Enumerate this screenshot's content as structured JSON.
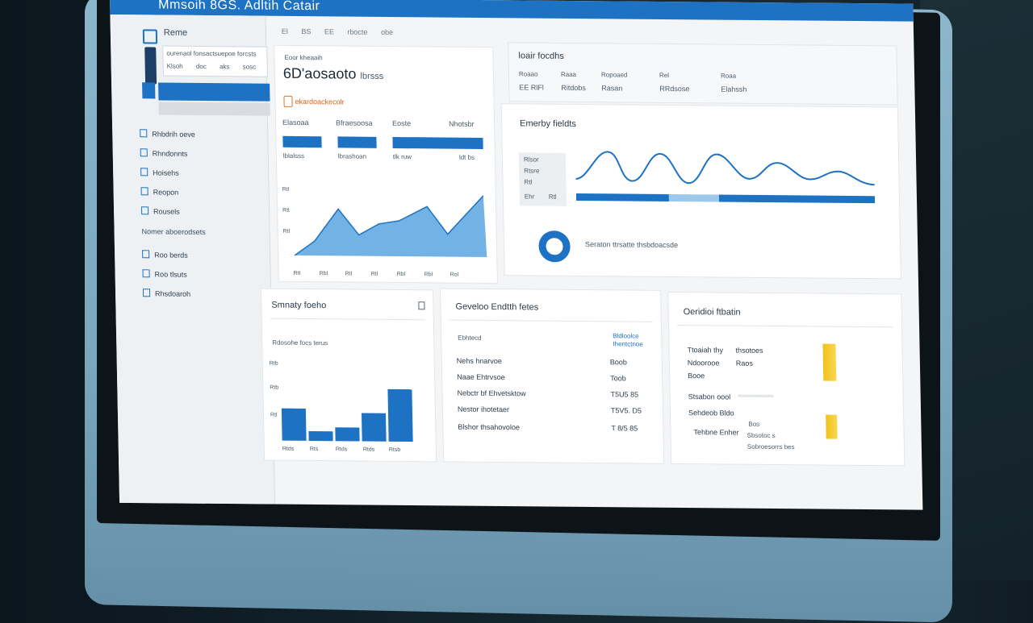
{
  "window": {
    "title": "Mmsoih 8GS. Adltih Catair"
  },
  "sidebar": {
    "home_label": "Reme",
    "card_line1": "ourenaol fonsactsuepoe forcsts",
    "card_line2": "Klsoh doc aks sosc",
    "items": [
      {
        "label": "Rhbdrih oeve"
      },
      {
        "label": "Rhndonnts"
      },
      {
        "label": "Hoisehs"
      },
      {
        "label": "Reopon"
      },
      {
        "label": "Rousels"
      }
    ],
    "section_label": "Nomer aboerodsets",
    "items2": [
      {
        "label": "Roo berds"
      },
      {
        "label": "Roo tlsuts"
      },
      {
        "label": "Rhsdoaroh"
      }
    ]
  },
  "topnav": {
    "items": [
      "El",
      "BS",
      "EE",
      "rbocte",
      "obe"
    ]
  },
  "summary": {
    "small_label": "Eoor kheaaih",
    "big_value": "6D'aosaoto",
    "big_suffix": "lbrsss",
    "alert": "ekardoackecolr",
    "stats": [
      {
        "label": "Elasoaa",
        "sub": "lblalsss"
      },
      {
        "label": "Bfraesoosa",
        "sub": "lbrashoan"
      },
      {
        "label": "Eoste",
        "sub": "tlk ruw"
      },
      {
        "label": "Nhotsbr",
        "sub": "ldt bs"
      }
    ],
    "y_ticks": [
      "Rtl",
      "Rtl",
      "Rtl"
    ],
    "x_ticks": [
      "Rtl",
      "Rbl",
      "Rtl",
      "Rtl",
      "Rbl",
      "Rbl",
      "Rol"
    ]
  },
  "top_right": {
    "title": "loair focdhs",
    "headers": [
      "Roaao",
      "Raaa",
      "Ropoaed",
      "Rel",
      "Roaa"
    ],
    "values": [
      "EE RlFl",
      "Ritdobs",
      "Rasan",
      "RRdsose",
      "Elahssh"
    ]
  },
  "activity": {
    "title": "Emerby fieldts",
    "legend": [
      "Rlsor",
      "Rtsre",
      "Rtl",
      "Ehr",
      "Rtl"
    ],
    "donut_text": "Seraton ttrsatte thsbdoacsde"
  },
  "bottom_left": {
    "title": "Smnaty foeho",
    "subtitle": "Rdosohe focs terus",
    "y_ticks": [
      "Rtb",
      "Rtb",
      "Rtl"
    ],
    "x_ticks": [
      "Rtds",
      "Rts",
      "Rtds",
      "Rtds",
      "Rtsb"
    ],
    "bars_values": [
      40,
      12,
      17,
      35,
      65
    ]
  },
  "bottom_mid": {
    "title": "Geveloo Endtth fetes",
    "col_head": "Ebhtecd",
    "col_head2": "Bldloolce Ihentctnoe",
    "rows": [
      {
        "label": "Nehs hnarvoe",
        "value": "Boob"
      },
      {
        "label": "Naae Ehtrvsoe",
        "value": "Toob"
      },
      {
        "label": "Nebctr bf Ehvetsktow",
        "value": "T5U5 85"
      },
      {
        "label": "Nestor ihotetaer",
        "value": "T5V5. D5"
      },
      {
        "label": "Blshor thsahovoloe",
        "value": "T 8/5 85"
      }
    ]
  },
  "bottom_right": {
    "title": "Oeridioi ftbatin",
    "rows": [
      {
        "a": "Ttoaiah thy",
        "b": "thsotoes"
      },
      {
        "a": "Ndoorooe",
        "b": "Raos"
      },
      {
        "a": "Booe",
        "b": ""
      },
      {
        "a": "Stsabon oool",
        "b": ""
      },
      {
        "a": "Sehdeob Bldo",
        "b": ""
      },
      {
        "a": "Tehbne Enher",
        "b": "Sbsotoc s"
      }
    ],
    "note1": "Bos",
    "note2": "Sobroesorrs bes"
  },
  "colors": {
    "accent": "#1d72c4",
    "yellow": "#f2c21b"
  },
  "icons": [
    "square-logo-icon",
    "book-icon",
    "alert-icon",
    "donut-icon"
  ]
}
